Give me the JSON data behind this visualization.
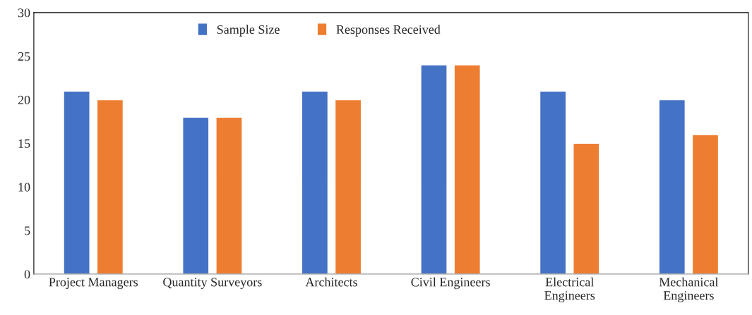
{
  "chart_data": {
    "type": "bar",
    "categories": [
      "Project Managers",
      "Quantity Surveyors",
      "Architects",
      "Civil Engineers",
      "Electrical\nEngineers",
      "Mechanical\nEngineers"
    ],
    "series": [
      {
        "name": "Sample Size",
        "color": "#4472c4",
        "values": [
          21,
          18,
          21,
          24,
          21,
          20
        ]
      },
      {
        "name": "Responses Received",
        "color": "#ed7d31",
        "values": [
          20,
          18,
          20,
          24,
          15,
          16
        ]
      }
    ],
    "ylim": [
      0,
      30
    ],
    "yticks": [
      0,
      5,
      10,
      15,
      20,
      25,
      30
    ],
    "grid": false,
    "legend": "top"
  }
}
